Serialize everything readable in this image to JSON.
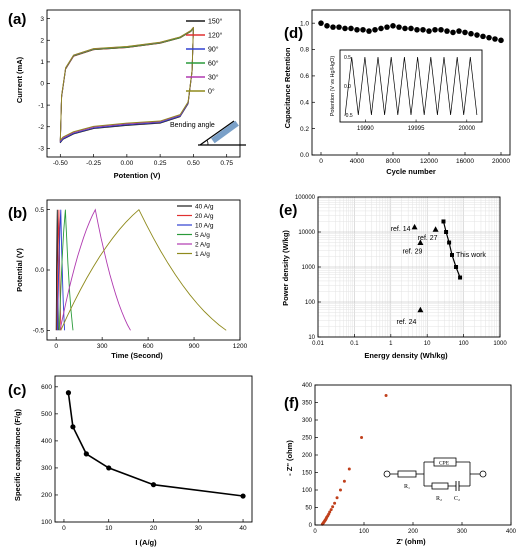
{
  "chart_data": [
    {
      "id": "a",
      "type": "line",
      "panel_label": "(a)",
      "xlabel": "Potention (V)",
      "ylabel": "Current  (mA)",
      "xlim": [
        -0.6,
        0.85
      ],
      "ylim": [
        -3.4,
        3.4
      ],
      "x_ticks": [
        "-0.50",
        "-0.25",
        "0.00",
        "0.25",
        "0.50",
        "0.75"
      ],
      "x_tick_values": [
        -0.5,
        -0.25,
        0.0,
        0.25,
        0.5,
        0.75
      ],
      "y_ticks": [
        "-3",
        "-2",
        "-1",
        "0",
        "1",
        "2",
        "3"
      ],
      "y_tick_values": [
        -3,
        -2,
        -1,
        0,
        1,
        2,
        3
      ],
      "legend_position": "top-right",
      "series": [
        {
          "name": "150°",
          "color": "#1a1a1a",
          "scale": 1.0
        },
        {
          "name": "120°",
          "color": "#e03030",
          "scale": 0.99
        },
        {
          "name": "90°",
          "color": "#3040d0",
          "scale": 1.0
        },
        {
          "name": "60°",
          "color": "#2a9a3a",
          "scale": 0.98
        },
        {
          "name": "30°",
          "color": "#b03ab0",
          "scale": 0.99
        },
        {
          "name": "0°",
          "color": "#8f8a1c",
          "scale": 0.985
        }
      ],
      "cv_shape": {
        "upper": [
          [
            -0.5,
            -2.7
          ],
          [
            -0.49,
            -0.6
          ],
          [
            -0.46,
            0.7
          ],
          [
            -0.4,
            1.3
          ],
          [
            -0.25,
            1.6
          ],
          [
            0.0,
            1.7
          ],
          [
            0.25,
            1.9
          ],
          [
            0.4,
            2.15
          ],
          [
            0.48,
            2.45
          ],
          [
            0.5,
            2.6
          ]
        ],
        "lower": [
          [
            0.5,
            2.6
          ],
          [
            0.49,
            0.6
          ],
          [
            0.46,
            -0.9
          ],
          [
            0.4,
            -1.5
          ],
          [
            0.25,
            -1.8
          ],
          [
            0.0,
            -1.9
          ],
          [
            -0.25,
            -2.05
          ],
          [
            -0.4,
            -2.3
          ],
          [
            -0.48,
            -2.55
          ],
          [
            -0.5,
            -2.7
          ]
        ]
      },
      "annotation": "Bending angle"
    },
    {
      "id": "b",
      "type": "line",
      "panel_label": "(b)",
      "xlabel": "Time (Second)",
      "ylabel": "Potential (V)",
      "xlim": [
        -60,
        1200
      ],
      "ylim": [
        -0.58,
        0.58
      ],
      "x_ticks": [
        "0",
        "300",
        "600",
        "900",
        "1200"
      ],
      "x_tick_values": [
        0,
        300,
        600,
        900,
        1200
      ],
      "y_ticks": [
        "-0.5",
        "0.0",
        "0.5"
      ],
      "y_tick_values": [
        -0.5,
        0.0,
        0.5
      ],
      "legend_position": "top-right",
      "series": [
        {
          "name": "40 A/g",
          "color": "#1a1a1a",
          "x": [
            0,
            7,
            14
          ],
          "y": [
            -0.5,
            0.5,
            -0.5
          ]
        },
        {
          "name": "20 A/g",
          "color": "#e03030",
          "x": [
            5,
            18,
            31
          ],
          "y": [
            -0.5,
            0.5,
            -0.5
          ]
        },
        {
          "name": "10 A/g",
          "color": "#3040d0",
          "x": [
            8,
            30,
            55
          ],
          "y": [
            -0.5,
            0.5,
            -0.5
          ]
        },
        {
          "name": "5 A/g",
          "color": "#2a9a3a",
          "x": [
            20,
            60,
            110
          ],
          "y": [
            -0.5,
            0.5,
            -0.5
          ]
        },
        {
          "name": "2 A/g",
          "color": "#b03ab0",
          "x": [
            25,
            255,
            485
          ],
          "y": [
            -0.5,
            0.5,
            -0.5
          ]
        },
        {
          "name": "1 A/g",
          "color": "#8f8a1c",
          "x": [
            30,
            540,
            1110
          ],
          "y": [
            -0.5,
            0.5,
            -0.5
          ]
        }
      ]
    },
    {
      "id": "c",
      "type": "line",
      "panel_label": "(c)",
      "xlabel": "I (A/g)",
      "ylabel": "Specific capacitance (F/g)",
      "xlim": [
        -2,
        42
      ],
      "ylim": [
        100,
        640
      ],
      "x_ticks": [
        "0",
        "10",
        "20",
        "30",
        "40"
      ],
      "x_tick_values": [
        0,
        10,
        20,
        30,
        40
      ],
      "y_ticks": [
        "100",
        "200",
        "300",
        "400",
        "500",
        "600"
      ],
      "y_tick_values": [
        100,
        200,
        300,
        400,
        500,
        600
      ],
      "series": [
        {
          "x": [
            1,
            2,
            5,
            10,
            20,
            40
          ],
          "y": [
            578,
            452,
            352,
            300,
            238,
            196
          ],
          "color": "#000000"
        }
      ]
    },
    {
      "id": "d",
      "type": "scatter",
      "panel_label": "(d)",
      "xlabel": "Cycle number",
      "ylabel": "Capacitance Retention",
      "xlim": [
        -1000,
        21000
      ],
      "ylim": [
        0,
        1.1
      ],
      "x_ticks": [
        "0",
        "4000",
        "8000",
        "12000",
        "16000",
        "20000"
      ],
      "x_tick_values": [
        0,
        4000,
        8000,
        12000,
        16000,
        20000
      ],
      "y_ticks": [
        "0.0",
        "0.2",
        "0.4",
        "0.6",
        "0.8",
        "1.0"
      ],
      "y_tick_values": [
        0.0,
        0.2,
        0.4,
        0.6,
        0.8,
        1.0
      ],
      "series": [
        {
          "color": "#000000",
          "x": [
            0,
            667,
            1333,
            2000,
            2667,
            3333,
            4000,
            4667,
            5333,
            6000,
            6667,
            7333,
            8000,
            8667,
            9333,
            10000,
            10667,
            11333,
            12000,
            12667,
            13333,
            14000,
            14667,
            15333,
            16000,
            16667,
            17333,
            18000,
            18667,
            19333,
            20000
          ],
          "y": [
            1.0,
            0.98,
            0.97,
            0.97,
            0.96,
            0.96,
            0.95,
            0.95,
            0.94,
            0.95,
            0.96,
            0.97,
            0.98,
            0.97,
            0.96,
            0.96,
            0.95,
            0.95,
            0.94,
            0.95,
            0.95,
            0.94,
            0.93,
            0.94,
            0.93,
            0.92,
            0.91,
            0.9,
            0.89,
            0.88,
            0.87
          ]
        }
      ],
      "inset": {
        "ylabel": "Potention (V vs Hg/HgO)",
        "x_ticks": [
          "19990",
          "19995",
          "20000"
        ],
        "x_tick_values": [
          19990,
          19995,
          20000
        ],
        "y_ticks": [
          "0.5",
          "0.0",
          "-0.5"
        ],
        "y_tick_values": [
          0.5,
          0.0,
          -0.5
        ],
        "xlim": [
          19987.5,
          20001.5
        ],
        "ylim": [
          -0.62,
          0.62
        ],
        "cycles": 10,
        "t_start": 19988,
        "t_end": 20001
      }
    },
    {
      "id": "e",
      "type": "scatter",
      "panel_label": "(e)",
      "xlabel": "Energy density (Wh/kg)",
      "ylabel": "Power density (W/kg)",
      "x_scale": "log",
      "y_scale": "log",
      "xlim": [
        0.01,
        1000
      ],
      "ylim": [
        10,
        100000
      ],
      "x_ticks": [
        "0.01",
        "0.1",
        "1",
        "10",
        "100",
        "1000"
      ],
      "x_tick_values": [
        0.01,
        0.1,
        1,
        10,
        100,
        1000
      ],
      "y_ticks": [
        "10",
        "100",
        "1000",
        "10000",
        "100000"
      ],
      "y_tick_values": [
        10,
        100,
        1000,
        10000,
        100000
      ],
      "grid": true,
      "this_work": {
        "label": "This work",
        "x": [
          28,
          33,
          40,
          48,
          62,
          80
        ],
        "y": [
          20000,
          10000,
          5000,
          2200,
          1000,
          500
        ]
      },
      "refs": [
        {
          "label": "ref. 14",
          "x": 4.5,
          "y": 14000
        },
        {
          "label": "ref. 27",
          "x": 17,
          "y": 12000
        },
        {
          "label": "ref. 29",
          "x": 6.5,
          "y": 5000
        },
        {
          "label": "ref. 24",
          "x": 6.5,
          "y": 60
        }
      ]
    },
    {
      "id": "f",
      "type": "scatter",
      "panel_label": "(f)",
      "xlabel": "Z' (ohm)",
      "ylabel": "- Z'' (ohm)",
      "xlim": [
        0,
        400
      ],
      "ylim": [
        0,
        400
      ],
      "x_ticks": [
        "0",
        "100",
        "200",
        "300",
        "400"
      ],
      "x_tick_values": [
        0,
        100,
        200,
        300,
        400
      ],
      "y_ticks": [
        "0",
        "50",
        "100",
        "150",
        "200",
        "250",
        "300",
        "350",
        "400"
      ],
      "y_tick_values": [
        0,
        50,
        100,
        150,
        200,
        250,
        300,
        350,
        400
      ],
      "series": [
        {
          "color": "#c0401c",
          "x": [
            15,
            16,
            17,
            18,
            19,
            20,
            21,
            22,
            23,
            24,
            26,
            28,
            30,
            33,
            36,
            40,
            45,
            52,
            60,
            70,
            95,
            145
          ],
          "y": [
            2,
            4,
            6,
            8,
            10,
            12,
            14,
            16,
            19,
            22,
            26,
            31,
            37,
            44,
            52,
            62,
            78,
            100,
            125,
            160,
            250,
            370
          ]
        }
      ],
      "circuit": {
        "r1": "R₁",
        "cpe": "CPE",
        "r2": "R₂",
        "c2": "C₂"
      }
    }
  ]
}
